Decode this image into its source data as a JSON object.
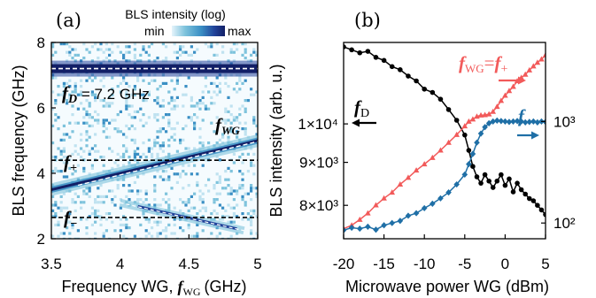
{
  "chart_data": [
    {
      "panel": "(a)",
      "type": "heatmap",
      "xlabel": "Frequency WG, ",
      "xlabel_symbol": "f",
      "xlabel_subscript": "WG",
      "xlabel_unit": "(GHz)",
      "ylabel": "BLS frequency (GHz)",
      "xlim": [
        3.5,
        5.0
      ],
      "ylim": [
        2,
        8
      ],
      "xticks": [
        "3.5",
        "4",
        "4.5",
        "5"
      ],
      "yticks": [
        "2",
        "4",
        "6",
        "8"
      ],
      "colorbar": {
        "title": "BLS intensity (log)",
        "min_label": "min",
        "max_label": "max",
        "colors": [
          "#e6f4fb",
          "#7ec3dc",
          "#3a8fc4",
          "#22449a",
          "#121f66"
        ]
      },
      "annotations": {
        "fD_symbol": "f",
        "fD_sub": "D",
        "fD_text": " = 7.2 GHz",
        "fWG_symbol": "f",
        "fWG_sub": "WG",
        "fplus_symbol": "f",
        "fplus_sub": "+",
        "fminus_symbol": "f",
        "fminus_sub": "−"
      },
      "reference_lines": [
        {
          "name": "f_D",
          "y": 7.2,
          "style": "dashed",
          "color": "#ffffff"
        },
        {
          "name": "f_+",
          "y": 4.4,
          "style": "dashed",
          "color": "#000000"
        },
        {
          "name": "f_-",
          "y": 2.65,
          "style": "dashed",
          "color": "#000000"
        }
      ],
      "features": [
        {
          "name": "f_D band",
          "y": 7.2,
          "x_range": [
            3.5,
            5.0
          ]
        },
        {
          "name": "f_WG diagonal",
          "x": [
            3.5,
            5.0
          ],
          "y": [
            3.5,
            5.0
          ]
        },
        {
          "name": "f_- branch",
          "x": [
            4.0,
            4.9
          ],
          "y": [
            3.1,
            2.25
          ]
        }
      ]
    },
    {
      "panel": "(b)",
      "type": "line",
      "xlabel": "Microwave power WG (dBm)",
      "ylabel": "BLS intensity (arb. u.)",
      "xlim": [
        -20,
        5
      ],
      "xticks": [
        "-20",
        "-15",
        "-10",
        "-5",
        "0",
        "5"
      ],
      "left_yticks": [
        "8×10³",
        "9×10³",
        "1×10⁴"
      ],
      "left_ylim": [
        7300,
        12500
      ],
      "left_yscale": "log",
      "right_yticks": [
        "10²",
        "10³"
      ],
      "right_ylim": [
        70,
        6000
      ],
      "right_yscale": "log",
      "series": [
        {
          "name": "f_D",
          "axis": "left",
          "marker": "circle",
          "color": "#000000",
          "x": [
            -20,
            -19,
            -18,
            -17,
            -16,
            -15,
            -14,
            -13,
            -12,
            -11,
            -10,
            -9,
            -8,
            -7,
            -6,
            -5,
            -4.5,
            -4,
            -3.5,
            -3,
            -2.5,
            -2,
            -1.5,
            -1,
            -0.5,
            0,
            0.5,
            1,
            1.5,
            2,
            2.5,
            3,
            3.5,
            4,
            4.5,
            5
          ],
          "y": [
            12350,
            12250,
            12150,
            12200,
            12000,
            11900,
            11700,
            11600,
            11400,
            11250,
            11000,
            10900,
            10700,
            10400,
            10100,
            9700,
            9300,
            8900,
            8650,
            8500,
            8700,
            8550,
            8400,
            8550,
            8700,
            8450,
            8600,
            8300,
            8500,
            8350,
            8250,
            8150,
            8100,
            8000,
            7900,
            7800
          ]
        },
        {
          "name": "f_WG = f_+",
          "axis": "right",
          "marker": "triangle",
          "color": "#f25a5a",
          "x": [
            -20,
            -19,
            -18,
            -17,
            -16,
            -15,
            -14,
            -13,
            -12,
            -11,
            -10,
            -9,
            -8,
            -7,
            -6,
            -5,
            -4.5,
            -4,
            -3.5,
            -3,
            -2.5,
            -2,
            -1.5,
            -1,
            -0.5,
            0,
            0.5,
            1,
            1.5,
            2,
            2.5,
            3,
            3.5,
            4,
            4.5,
            5
          ],
          "y": [
            88,
            95,
            108,
            125,
            150,
            175,
            200,
            240,
            280,
            330,
            380,
            440,
            520,
            620,
            740,
            900,
            1000,
            1050,
            1120,
            1150,
            1160,
            1180,
            1250,
            1400,
            1600,
            1800,
            2000,
            2200,
            2500,
            2700,
            2900,
            3200,
            3500,
            3800,
            4100,
            4500
          ]
        },
        {
          "name": "f_-",
          "axis": "right",
          "marker": "diamond",
          "color": "#1f6fa6",
          "x": [
            -20,
            -19,
            -18,
            -17,
            -16,
            -15,
            -14,
            -13,
            -12,
            -11,
            -10,
            -9,
            -8,
            -7,
            -6,
            -5,
            -4.5,
            -4,
            -3.5,
            -3,
            -2.5,
            -2,
            -1.5,
            -1,
            -0.5,
            0,
            0.5,
            1,
            1.5,
            2,
            2.5,
            3,
            3.5,
            4,
            4.5,
            5
          ],
          "y": [
            85,
            90,
            88,
            92,
            86,
            95,
            100,
            105,
            118,
            125,
            140,
            155,
            175,
            200,
            240,
            300,
            380,
            480,
            620,
            760,
            880,
            960,
            1000,
            1020,
            1010,
            1000,
            990,
            1000,
            1010,
            1000,
            980,
            990,
            1000,
            980,
            1000,
            990
          ]
        }
      ],
      "annotations": {
        "fD_symbol": "f",
        "fD_sub": "D",
        "fWG_symbol": "f",
        "fWG_sub": "WG",
        "eq": "=",
        "fplus_symbol": "f",
        "fplus_sub": "+",
        "fminus_symbol": "f",
        "fminus_sub": "−"
      }
    }
  ],
  "colors": {
    "fD": "#000000",
    "fplus": "#f25a5a",
    "fminus": "#1f6fa6"
  }
}
